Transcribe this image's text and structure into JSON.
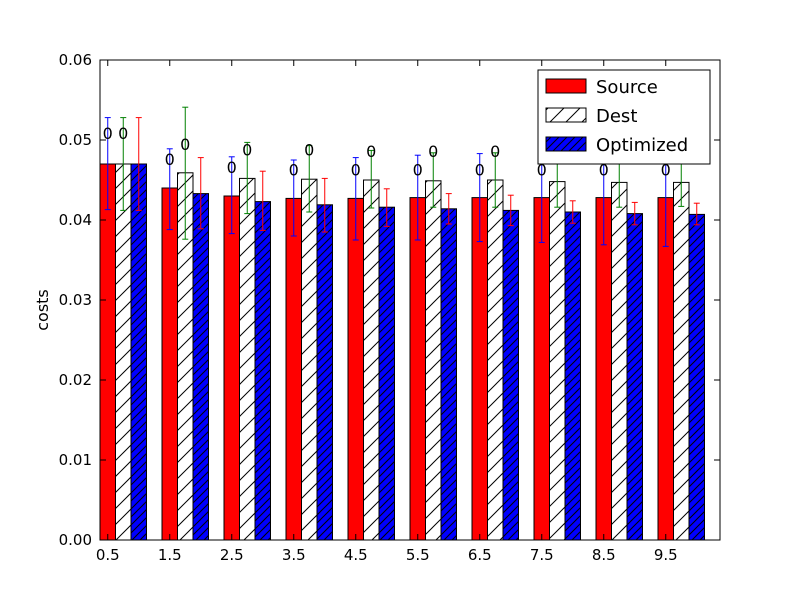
{
  "chart_data": {
    "type": "bar",
    "title": "",
    "xlabel": "",
    "ylabel": "costs",
    "ylim": [
      0,
      0.06
    ],
    "yticks": [
      "0.00",
      "0.01",
      "0.02",
      "0.03",
      "0.04",
      "0.05",
      "0.06"
    ],
    "categories": [
      "0.5",
      "1.5",
      "2.5",
      "3.5",
      "4.5",
      "5.5",
      "6.5",
      "7.5",
      "8.5",
      "9.5"
    ],
    "grid": false,
    "legend_position": "top-right",
    "series": [
      {
        "name": "Source",
        "color": "#ff0000",
        "hatch": "none",
        "err_color": "#0000ff",
        "values": [
          0.047,
          0.044,
          0.043,
          0.0427,
          0.0427,
          0.0428,
          0.0428,
          0.0428,
          0.0428,
          0.0428
        ],
        "err_low": [
          0.0413,
          0.0388,
          0.0383,
          0.038,
          0.0375,
          0.0375,
          0.0373,
          0.0372,
          0.0369,
          0.0367
        ],
        "err_high": [
          0.0528,
          0.0489,
          0.0479,
          0.0475,
          0.0478,
          0.0481,
          0.0483,
          0.0484,
          0.0487,
          0.0489
        ],
        "marker_value": [
          0.0509,
          0.0476,
          0.0466,
          0.0463,
          0.0463,
          0.0463,
          0.0463,
          0.0463,
          0.0463,
          0.0463
        ]
      },
      {
        "name": "Dest",
        "color": "#ffffff",
        "hatch": "/",
        "err_color": "#008000",
        "values": [
          0.047,
          0.0459,
          0.0452,
          0.0451,
          0.045,
          0.0449,
          0.045,
          0.0448,
          0.0447,
          0.0447
        ],
        "err_low": [
          0.0412,
          0.0376,
          0.0408,
          0.041,
          0.0415,
          0.0416,
          0.0416,
          0.0416,
          0.0416,
          0.0417
        ],
        "err_high": [
          0.0528,
          0.0541,
          0.0497,
          0.0493,
          0.0487,
          0.0484,
          0.0484,
          0.0485,
          0.0485,
          0.0485
        ],
        "marker_value": [
          0.0509,
          0.0495,
          0.0488,
          0.0488,
          0.0486,
          0.0486,
          0.0486,
          0.0486,
          0.0486,
          0.0486
        ]
      },
      {
        "name": "Optimized",
        "color": "#0000ff",
        "hatch": "//",
        "err_color": "#ff0000",
        "values": [
          0.047,
          0.0433,
          0.0423,
          0.0419,
          0.0416,
          0.0414,
          0.0412,
          0.041,
          0.0408,
          0.0407
        ],
        "err_low": [
          0.0412,
          0.0389,
          0.0387,
          0.0385,
          0.0392,
          0.0395,
          0.0393,
          0.0396,
          0.0394,
          0.0394
        ],
        "err_high": [
          0.0528,
          0.0478,
          0.0461,
          0.0452,
          0.0439,
          0.0433,
          0.0431,
          0.0424,
          0.0422,
          0.0421
        ]
      }
    ],
    "marker_glyph": "0"
  },
  "colors": {
    "background": "#ffffff",
    "axes": "#000000"
  }
}
